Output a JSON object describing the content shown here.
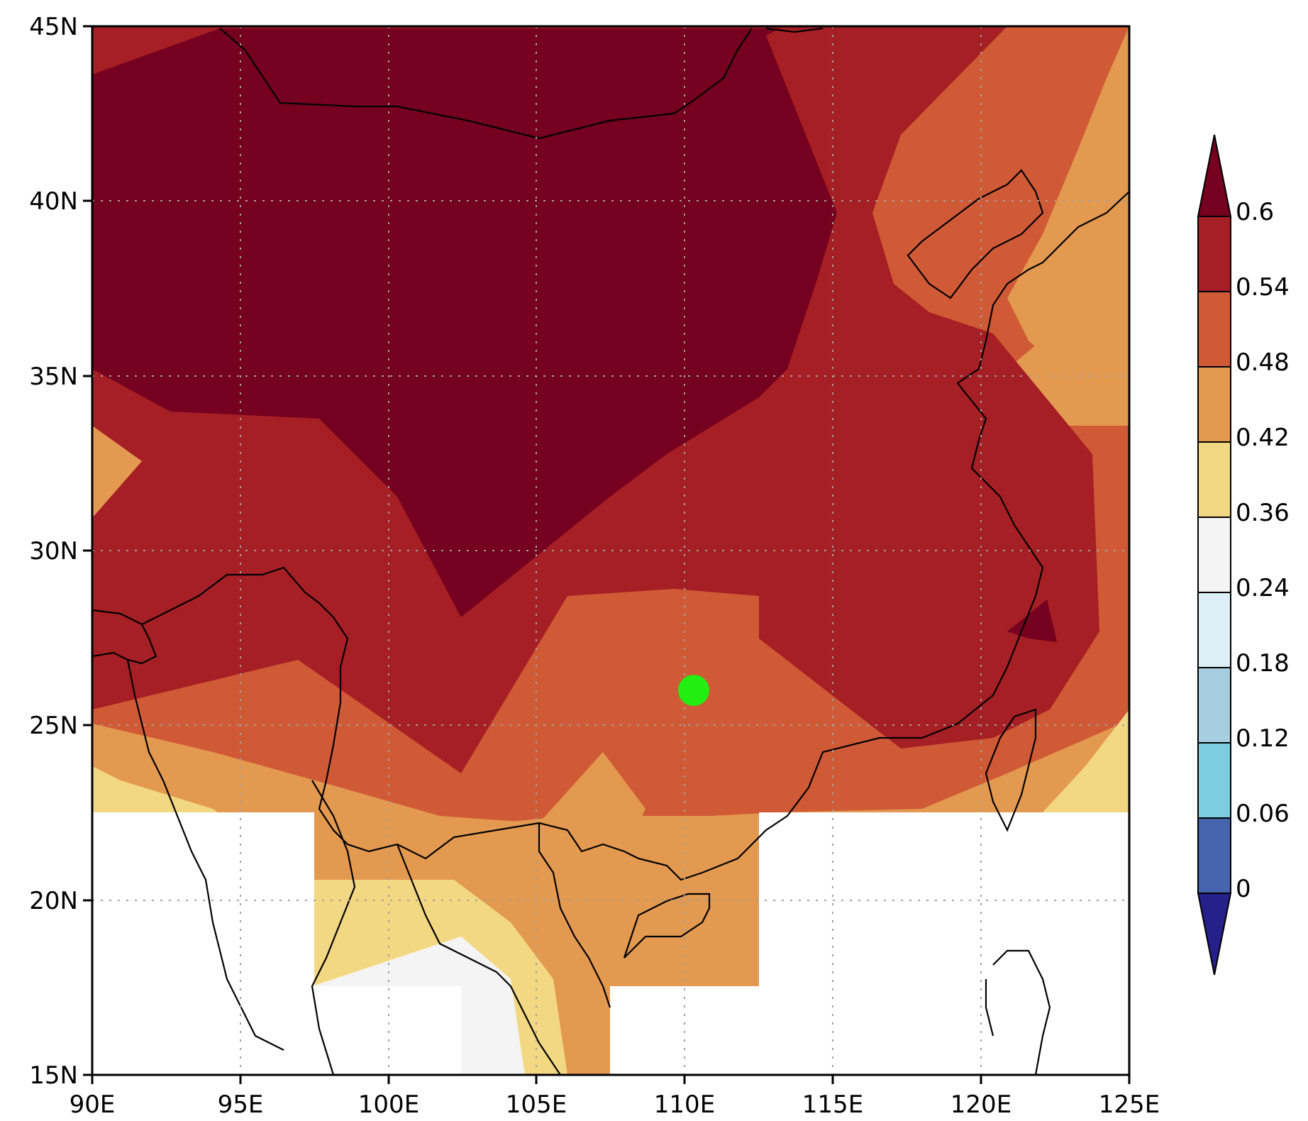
{
  "map": {
    "x_axis": {
      "ticks": [
        "90E",
        "95E",
        "100E",
        "105E",
        "110E",
        "115E",
        "120E",
        "125E"
      ]
    },
    "y_axis": {
      "ticks": [
        "15N",
        "20N",
        "25N",
        "30N",
        "35N",
        "40N",
        "45N"
      ]
    },
    "extent": {
      "lon": [
        90,
        125
      ],
      "lat": [
        15,
        45
      ]
    },
    "grid": "dotted",
    "marker": {
      "lon": 110.3,
      "lat": 26.0,
      "color": "#22ee11"
    }
  },
  "colorbar": {
    "labels": [
      "0",
      "0.06",
      "0.12",
      "0.18",
      "0.24",
      "0.36",
      "0.42",
      "0.48",
      "0.54",
      "0.6"
    ],
    "colors": [
      "#25208a",
      "#4663ad",
      "#7ccde0",
      "#a6cde0",
      "#ddeef6",
      "#f4f4f4",
      "#f3d884",
      "#e39a50",
      "#d05a36",
      "#a61f24",
      "#750020"
    ],
    "extend": "both"
  }
}
